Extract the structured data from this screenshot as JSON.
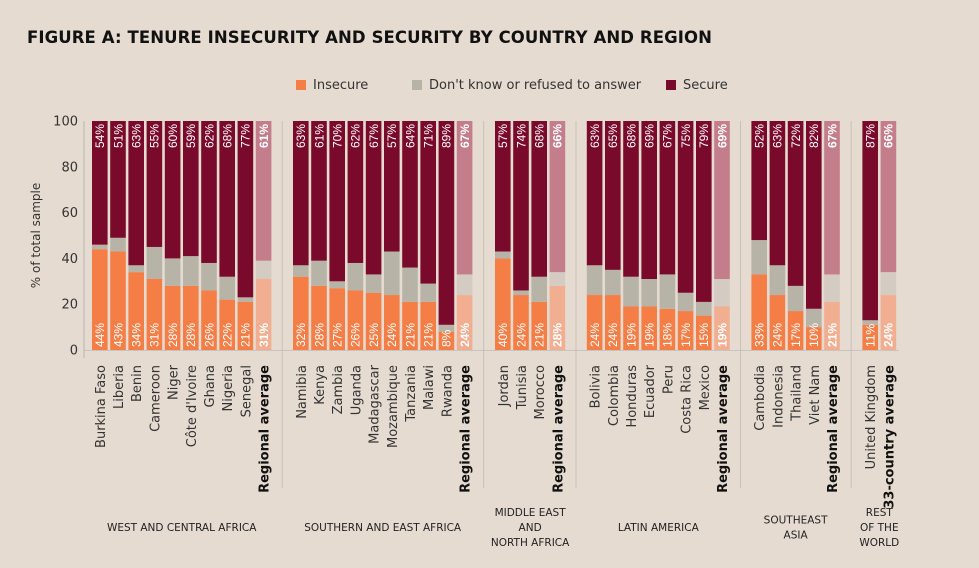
{
  "title": "FIGURE A: TENURE INSECURITY AND SECURITY BY COUNTRY AND REGION",
  "colors": {
    "insecure": "#f47e46",
    "dont_know": "#b7b4a7",
    "secure": "#7a0a2c",
    "avg_insecure": "#f2ae91",
    "avg_dont_know": "#d4cbc2",
    "avg_secure": "#c47d8a",
    "background": "#e6dbd0"
  },
  "legend": [
    {
      "label": "Insecure",
      "color_key": "insecure"
    },
    {
      "label": "Don't know or refused to answer",
      "color_key": "dont_know"
    },
    {
      "label": "Secure",
      "color_key": "secure"
    }
  ],
  "chart_data": {
    "type": "bar",
    "stacked": true,
    "ylabel": "% of total sample",
    "ylim": [
      0,
      100
    ],
    "yticks": [
      0,
      20,
      40,
      60,
      80,
      100
    ],
    "series": [
      {
        "name": "Insecure"
      },
      {
        "name": "Don't know or refused to answer"
      },
      {
        "name": "Secure"
      }
    ],
    "groups": [
      {
        "region": [
          "WEST AND CENTRAL AFRICA"
        ],
        "bars": [
          {
            "label": "Burkina Faso",
            "insecure": 44,
            "dont_know": 2,
            "secure": 54
          },
          {
            "label": "Liberia",
            "insecure": 43,
            "dont_know": 6,
            "secure": 51
          },
          {
            "label": "Benin",
            "insecure": 34,
            "dont_know": 3,
            "secure": 63
          },
          {
            "label": "Cameroon",
            "insecure": 31,
            "dont_know": 14,
            "secure": 55
          },
          {
            "label": "Niger",
            "insecure": 28,
            "dont_know": 12,
            "secure": 60
          },
          {
            "label": "Côte d'Ivoire",
            "insecure": 28,
            "dont_know": 13,
            "secure": 59
          },
          {
            "label": "Ghana",
            "insecure": 26,
            "dont_know": 12,
            "secure": 62
          },
          {
            "label": "Nigeria",
            "insecure": 22,
            "dont_know": 10,
            "secure": 68
          },
          {
            "label": "Senegal",
            "insecure": 21,
            "dont_know": 2,
            "secure": 77
          },
          {
            "label": "Regional average",
            "insecure": 31,
            "dont_know": 8,
            "secure": 61,
            "average": true
          }
        ]
      },
      {
        "region": [
          "SOUTHERN AND EAST AFRICA"
        ],
        "bars": [
          {
            "label": "Namibia",
            "insecure": 32,
            "dont_know": 5,
            "secure": 63
          },
          {
            "label": "Kenya",
            "insecure": 28,
            "dont_know": 11,
            "secure": 61
          },
          {
            "label": "Zambia",
            "insecure": 27,
            "dont_know": 3,
            "secure": 70
          },
          {
            "label": "Uganda",
            "insecure": 26,
            "dont_know": 12,
            "secure": 62
          },
          {
            "label": "Madagascar",
            "insecure": 25,
            "dont_know": 8,
            "secure": 67
          },
          {
            "label": "Mozambique",
            "insecure": 24,
            "dont_know": 19,
            "secure": 57
          },
          {
            "label": "Tanzania",
            "insecure": 21,
            "dont_know": 15,
            "secure": 64
          },
          {
            "label": "Malawi",
            "insecure": 21,
            "dont_know": 8,
            "secure": 71
          },
          {
            "label": "Rwanda",
            "insecure": 8,
            "dont_know": 3,
            "secure": 89
          },
          {
            "label": "Regional average",
            "insecure": 24,
            "dont_know": 9,
            "secure": 67,
            "average": true
          }
        ]
      },
      {
        "region": [
          "MIDDLE EAST",
          "AND",
          "NORTH AFRICA"
        ],
        "bars": [
          {
            "label": "Jordan",
            "insecure": 40,
            "dont_know": 3,
            "secure": 57
          },
          {
            "label": "Tunisia",
            "insecure": 24,
            "dont_know": 2,
            "secure": 74
          },
          {
            "label": "Morocco",
            "insecure": 21,
            "dont_know": 11,
            "secure": 68
          },
          {
            "label": "Regional average",
            "insecure": 28,
            "dont_know": 6,
            "secure": 66,
            "average": true
          }
        ]
      },
      {
        "region": [
          "LATIN AMERICA"
        ],
        "bars": [
          {
            "label": "Bolivia",
            "insecure": 24,
            "dont_know": 13,
            "secure": 63
          },
          {
            "label": "Colombia",
            "insecure": 24,
            "dont_know": 11,
            "secure": 65
          },
          {
            "label": "Honduras",
            "insecure": 19,
            "dont_know": 13,
            "secure": 68
          },
          {
            "label": "Ecuador",
            "insecure": 19,
            "dont_know": 12,
            "secure": 69
          },
          {
            "label": "Peru",
            "insecure": 18,
            "dont_know": 15,
            "secure": 67
          },
          {
            "label": "Costa Rica",
            "insecure": 17,
            "dont_know": 8,
            "secure": 75
          },
          {
            "label": "Mexico",
            "insecure": 15,
            "dont_know": 6,
            "secure": 79
          },
          {
            "label": "Regional average",
            "insecure": 19,
            "dont_know": 12,
            "secure": 69,
            "average": true
          }
        ]
      },
      {
        "region": [
          "SOUTHEAST",
          "ASIA"
        ],
        "bars": [
          {
            "label": "Cambodia",
            "insecure": 33,
            "dont_know": 15,
            "secure": 52
          },
          {
            "label": "Indonesia",
            "insecure": 24,
            "dont_know": 13,
            "secure": 63
          },
          {
            "label": "Thailand",
            "insecure": 17,
            "dont_know": 11,
            "secure": 72
          },
          {
            "label": "Viet Nam",
            "insecure": 10,
            "dont_know": 8,
            "secure": 82
          },
          {
            "label": "Regional average",
            "insecure": 21,
            "dont_know": 12,
            "secure": 67,
            "average": true
          }
        ]
      },
      {
        "region": [
          "REST",
          "OF THE",
          "WORLD"
        ],
        "bars": [
          {
            "label": "United Kingdom",
            "insecure": 11,
            "dont_know": 2,
            "secure": 87
          },
          {
            "label": "33-country average",
            "insecure": 24,
            "dont_know": 10,
            "secure": 66,
            "average": true
          }
        ]
      }
    ]
  }
}
